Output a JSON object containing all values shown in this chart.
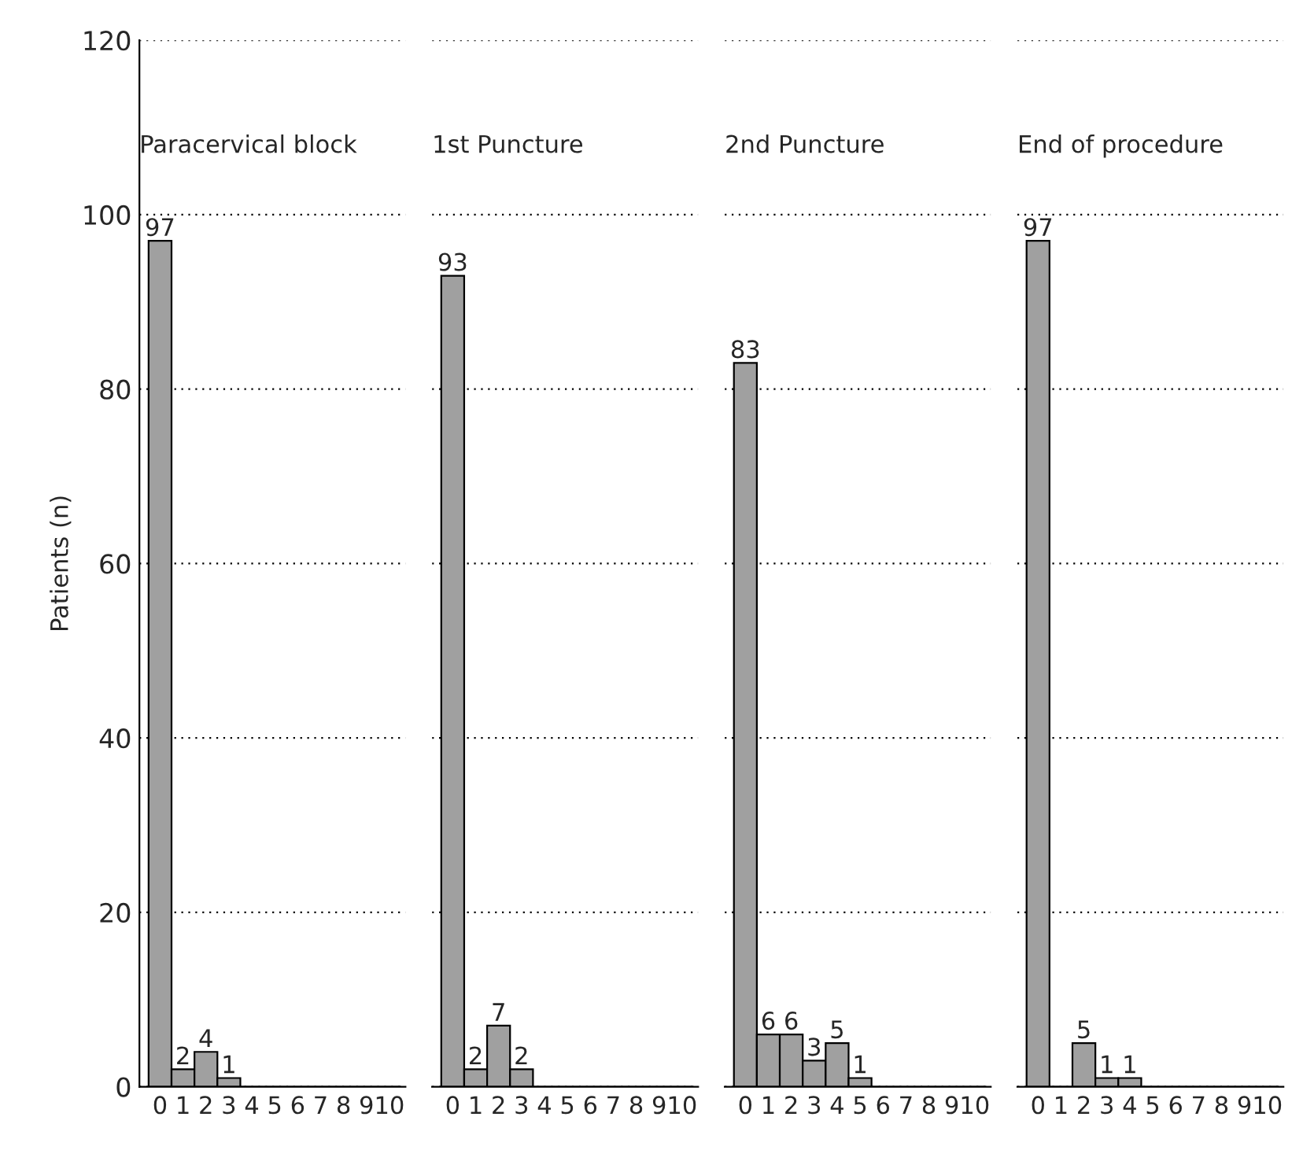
{
  "chart_data": [
    {
      "type": "bar",
      "title": "Paracervical block",
      "ylabel": "Patients (n)",
      "categories": [
        "0",
        "1",
        "2",
        "3",
        "4",
        "5",
        "6",
        "7",
        "8",
        "9",
        "10"
      ],
      "values": [
        97,
        2,
        4,
        1,
        0,
        0,
        0,
        0,
        0,
        0,
        0
      ],
      "value_labels": [
        "97",
        "2",
        "4",
        "1",
        null,
        null,
        null,
        null,
        null,
        null,
        null
      ],
      "color": "#a0a0a0",
      "ylim": [
        0,
        120
      ],
      "yticks": [
        0,
        20,
        40,
        60,
        80,
        100,
        120
      ],
      "grid": "y"
    },
    {
      "type": "bar",
      "title": "1st Puncture",
      "categories": [
        "0",
        "1",
        "2",
        "3",
        "4",
        "5",
        "6",
        "7",
        "8",
        "9",
        "10"
      ],
      "values": [
        93,
        2,
        7,
        2,
        0,
        0,
        0,
        0,
        0,
        0,
        0
      ],
      "value_labels": [
        "93",
        "2",
        "7",
        "2",
        null,
        null,
        null,
        null,
        null,
        null,
        null
      ],
      "color": "#a0a0a0",
      "ylim": [
        0,
        120
      ],
      "yticks": [
        0,
        20,
        40,
        60,
        80,
        100,
        120
      ],
      "grid": "y",
      "tick_labels": "x"
    },
    {
      "type": "bar",
      "title": "2nd Puncture",
      "categories": [
        "0",
        "1",
        "2",
        "3",
        "4",
        "5",
        "6",
        "7",
        "8",
        "9",
        "10"
      ],
      "values": [
        83,
        6,
        6,
        3,
        5,
        1,
        0,
        0,
        0,
        0,
        0
      ],
      "value_labels": [
        "83",
        "6",
        "6",
        "3",
        "5",
        "1",
        null,
        null,
        null,
        null,
        null
      ],
      "color": "#a0a0a0",
      "ylim": [
        0,
        120
      ],
      "yticks": [
        0,
        20,
        40,
        60,
        80,
        100,
        120
      ],
      "grid": "y",
      "tick_labels": "x"
    },
    {
      "type": "bar",
      "title": "End of procedure",
      "categories": [
        "0",
        "1",
        "2",
        "3",
        "4",
        "5",
        "6",
        "7",
        "8",
        "9",
        "10"
      ],
      "values": [
        97,
        0,
        5,
        1,
        1,
        0,
        0,
        0,
        0,
        0,
        0
      ],
      "value_labels": [
        "97",
        null,
        "5",
        "1",
        "1",
        null,
        null,
        null,
        null,
        null,
        null
      ],
      "color": "#a0a0a0",
      "ylim": [
        0,
        120
      ],
      "yticks": [
        0,
        20,
        40,
        60,
        80,
        100,
        120
      ],
      "grid": "y",
      "tick_labels": "x"
    }
  ]
}
